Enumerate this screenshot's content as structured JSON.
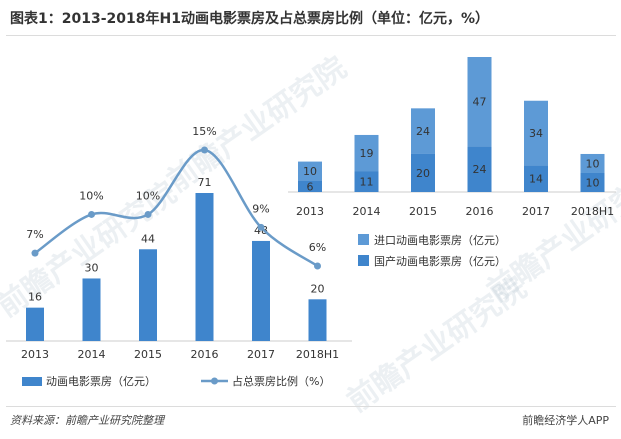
{
  "header": {
    "title": "图表1：2013-2018年H1动画电影票房及占总票房比例（单位：亿元，%）"
  },
  "watermark_text": "前瞻产业研究院",
  "footer": {
    "source": "资料来源：前瞻产业研究院整理",
    "brand": "前瞻经济学人APP"
  },
  "legends": {
    "left_bar": "动画电影票房（亿元）",
    "left_line": "占总票房比例（%）",
    "right_import": "进口动画电影票房（亿元）",
    "right_domestic": "国产动画电影票房（亿元）"
  },
  "chart_data": [
    {
      "type": "bar",
      "categories": [
        "2013",
        "2014",
        "2015",
        "2016",
        "2017",
        "2018H1"
      ],
      "series": [
        {
          "name": "动画电影票房（亿元）",
          "type": "bar",
          "values": [
            16,
            30,
            44,
            71,
            48,
            20
          ],
          "color": "#3f85cc"
        },
        {
          "name": "占总票房比例（%）",
          "type": "line",
          "values": [
            7,
            10,
            10,
            15,
            9,
            6
          ],
          "labels": [
            "7%",
            "10%",
            "10%",
            "15%",
            "9%",
            "6%"
          ],
          "color": "#6a9bc8"
        }
      ],
      "ylim_bar": [
        0,
        80
      ],
      "ylim_line": [
        0,
        18
      ],
      "legend_position": "bottom"
    },
    {
      "type": "bar",
      "stacked": true,
      "categories": [
        "2013",
        "2014",
        "2015",
        "2016",
        "2017",
        "2018H1"
      ],
      "series": [
        {
          "name": "国产动画电影票房（亿元）",
          "values": [
            6,
            11,
            20,
            24,
            14,
            10
          ],
          "color": "#3f85cc"
        },
        {
          "name": "进口动画电影票房（亿元）",
          "values": [
            10,
            19,
            24,
            47,
            34,
            10
          ],
          "color": "#5d9ad6"
        }
      ],
      "ylim": [
        0,
        72
      ],
      "legend_position": "bottom"
    }
  ]
}
